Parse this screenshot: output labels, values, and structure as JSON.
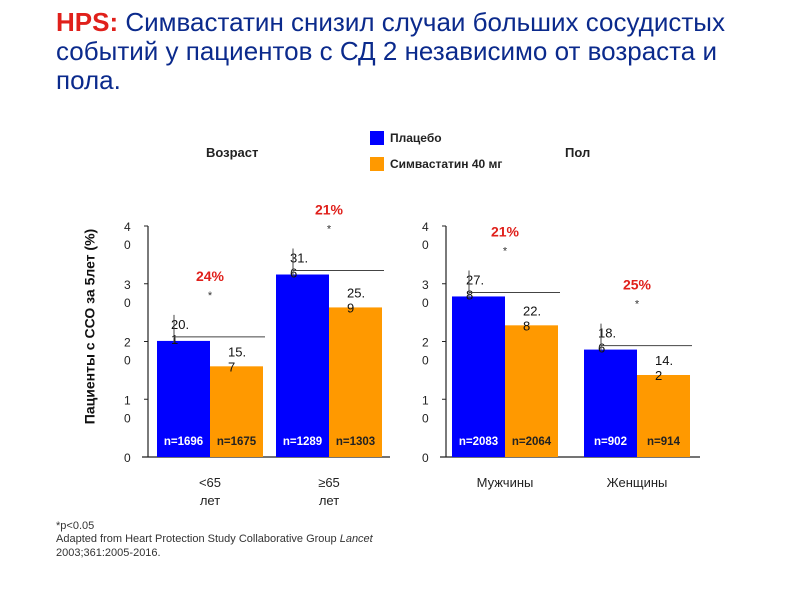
{
  "title": {
    "prefix": "HPS:",
    "text": " Симвастатин  снизил случаи больших сосудистых событий у пациентов с СД 2 независимо от возраста и пола."
  },
  "legend": [
    {
      "label": "Плацебо",
      "color": "#0000ff"
    },
    {
      "label": "Симвастатин 40 мг",
      "color": "#ff9900"
    }
  ],
  "footnote": "*p<0.05",
  "source": {
    "text": "Adapted from Heart Protection Study Collaborative Group ",
    "journal": "Lancet",
    "ref": "2003;361:2005-2016."
  },
  "chart_data": [
    {
      "type": "bar",
      "title": "Возраст",
      "ylabel": "Пациенты с ССО за 5лет (%)",
      "ylim": [
        0,
        40
      ],
      "yticks": [
        0,
        10,
        20,
        30,
        40
      ],
      "categories": [
        "<65 лет",
        "≥65 лет"
      ],
      "series": [
        {
          "name": "Плацебо",
          "values": [
            20.1,
            31.6
          ],
          "n": [
            "n=1696",
            "n=1289"
          ]
        },
        {
          "name": "Симвастатин 40 мг",
          "values": [
            15.7,
            25.9
          ],
          "n": [
            "n=1675",
            "n=1303"
          ]
        }
      ],
      "reductions": [
        "24%",
        "21%"
      ],
      "significance": [
        "*",
        "*"
      ]
    },
    {
      "type": "bar",
      "title": "Пол",
      "ylim": [
        0,
        40
      ],
      "yticks": [
        0,
        10,
        20,
        30,
        40
      ],
      "categories": [
        "Мужчины",
        "Женщины"
      ],
      "series": [
        {
          "name": "Плацебо",
          "values": [
            27.8,
            18.6
          ],
          "n": [
            "n=2083",
            "n=902"
          ]
        },
        {
          "name": "Симвастатин 40 мг",
          "values": [
            22.8,
            14.2
          ],
          "n": [
            "n=2064",
            "n=914"
          ]
        }
      ],
      "reductions": [
        "21%",
        "25%"
      ],
      "significance": [
        "*",
        "*"
      ]
    }
  ]
}
